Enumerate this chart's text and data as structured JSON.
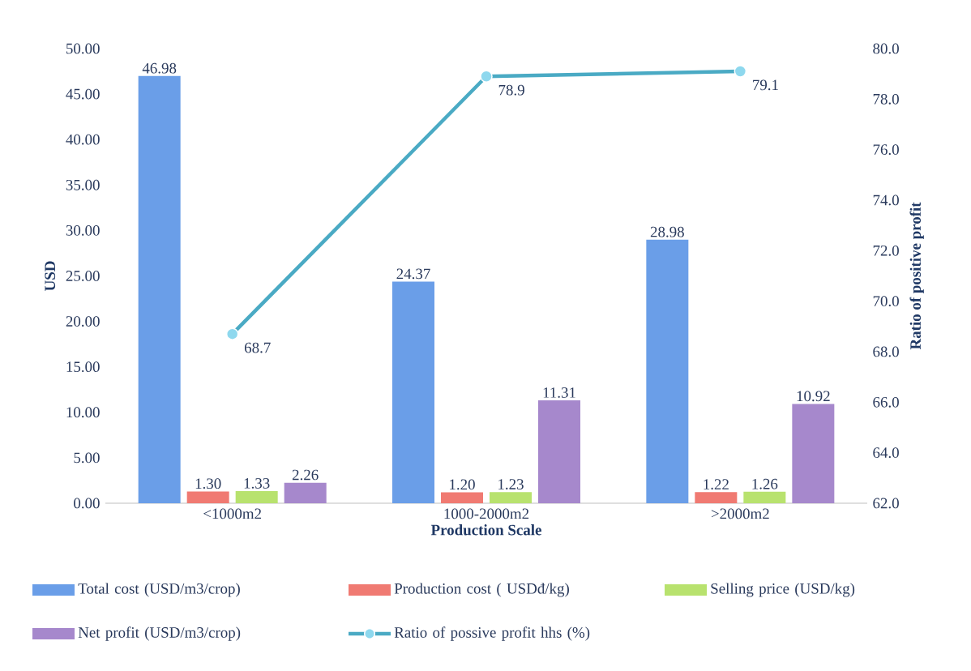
{
  "chart_data": {
    "type": "bar",
    "xlabel": "Production Scale",
    "ylabel": "USD",
    "y2label": "Ratio of positive profit",
    "categories": [
      "<1000m2",
      "1000-2000m2",
      ">2000m2"
    ],
    "series": [
      {
        "name": "Total cost (USD/m3/crop)",
        "color": "#6a9ee8",
        "values": [
          46.98,
          24.37,
          28.98
        ],
        "value_labels": [
          "46.98",
          "24.37",
          "28.98"
        ]
      },
      {
        "name": "Production cost ( USDđ/kg)",
        "color": "#f07a72",
        "values": [
          1.3,
          1.2,
          1.22
        ],
        "value_labels": [
          "1.30",
          "1.20",
          "1.22"
        ]
      },
      {
        "name": "Selling price (USD/kg)",
        "color": "#b8e26e",
        "values": [
          1.33,
          1.23,
          1.26
        ],
        "value_labels": [
          "1.33",
          "1.23",
          "1.26"
        ]
      },
      {
        "name": "Net profit (USD/m3/crop)",
        "color": "#a688cc",
        "values": [
          2.26,
          11.31,
          10.92
        ],
        "value_labels": [
          "2.26",
          "11.31",
          "10.92"
        ]
      },
      {
        "name": "Ratio of possive profit hhs (%)",
        "type": "line",
        "axis": "y2",
        "marker": "circle",
        "color": "#4aaac4",
        "values": [
          68.7,
          78.9,
          79.1
        ],
        "value_labels": [
          "68.7",
          "78.9",
          "79.1"
        ]
      }
    ],
    "ylim": [
      0,
      50
    ],
    "yticks": [
      {
        "value": 0,
        "label": "0.00"
      },
      {
        "value": 5,
        "label": "5.00"
      },
      {
        "value": 10,
        "label": "10.00"
      },
      {
        "value": 15,
        "label": "15.00"
      },
      {
        "value": 20,
        "label": "20.00"
      },
      {
        "value": 25,
        "label": "25.00"
      },
      {
        "value": 30,
        "label": "30.00"
      },
      {
        "value": 35,
        "label": "35.00"
      },
      {
        "value": 40,
        "label": "40.00"
      },
      {
        "value": 45,
        "label": "45.00"
      },
      {
        "value": 50,
        "label": "50.00"
      }
    ],
    "y2lim": [
      62,
      80
    ],
    "y2ticks": [
      {
        "value": 62,
        "label": "62.0"
      },
      {
        "value": 64,
        "label": "64.0"
      },
      {
        "value": 66,
        "label": "66.0"
      },
      {
        "value": 68,
        "label": "68.0"
      },
      {
        "value": 70,
        "label": "70.0"
      },
      {
        "value": 72,
        "label": "72.0"
      },
      {
        "value": 74,
        "label": "74.0"
      },
      {
        "value": 76,
        "label": "76.0"
      },
      {
        "value": 78,
        "label": "78.0"
      },
      {
        "value": 80,
        "label": "80.0"
      }
    ],
    "grid": false,
    "legend": "bottom"
  }
}
